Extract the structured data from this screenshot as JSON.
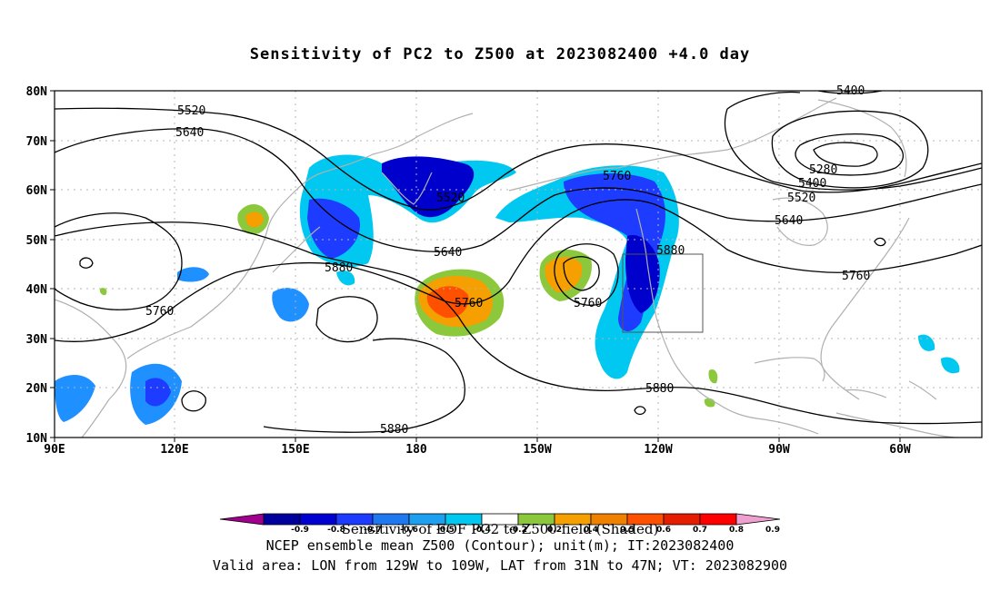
{
  "title": "Sensitivity of PC2 to Z500 at 2023082400 +4.0 day",
  "colors": {
    "land": "#b0b0b0",
    "contour": "#000000",
    "neg_strong": "#0000cc",
    "neg_mid": "#1a3cff",
    "neg_light": "#1e90ff",
    "neg_pale": "#00c8f0",
    "pos_green": "#8cc83c",
    "pos_orange": "#f5a000",
    "pos_red": "#ff5000"
  },
  "map": {
    "lat_labels": [
      "80N",
      "70N",
      "60N",
      "50N",
      "40N",
      "30N",
      "20N",
      "10N"
    ],
    "lon_labels": [
      "90E",
      "120E",
      "150E",
      "180",
      "150W",
      "120W",
      "90W",
      "60W"
    ],
    "contour_labels": [
      "5520",
      "5640",
      "5760",
      "5880",
      "5520",
      "5640",
      "5880",
      "5760",
      "5760",
      "5760",
      "5880",
      "5880",
      "5400",
      "5280",
      "5400",
      "5520",
      "5640",
      "5760"
    ],
    "valid_box": {
      "lon_from": "129W",
      "lon_to": "109W",
      "lat_from": "31N",
      "lat_to": "47N"
    }
  },
  "colorbar": {
    "ticks": [
      "-0.9",
      "-0.8",
      "-0.7",
      "-0.6",
      "-0.5",
      "-0.4",
      "-0.2",
      "0.2",
      "0.4",
      "0.5",
      "0.6",
      "0.7",
      "0.8",
      "0.9"
    ],
    "colors": [
      "#a0008c",
      "#00009c",
      "#0000d0",
      "#1e3cff",
      "#1e78f0",
      "#1ea0f0",
      "#00c8f0",
      "#ffffff",
      "#8cc83c",
      "#f5a000",
      "#f08000",
      "#ff5000",
      "#e61e00",
      "#ff0000",
      "#f0a0d0"
    ],
    "label": "Sensitivity of EOF PC2 to Z500 field (Shaded)"
  },
  "footer": {
    "line1": "NCEP ensemble mean Z500 (Contour); unit(m); IT:2023082400",
    "line2": "Valid area: LON from 129W to 109W, LAT from 31N to 47N; VT: 2023082900"
  }
}
